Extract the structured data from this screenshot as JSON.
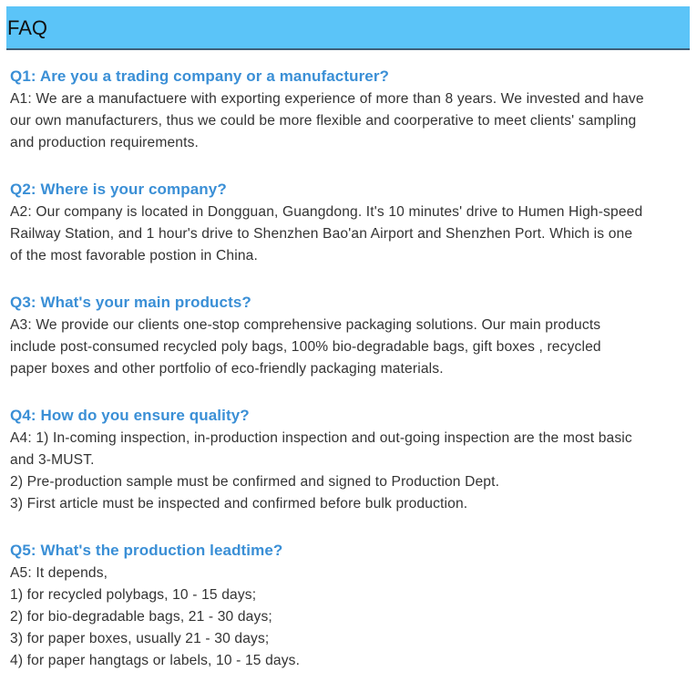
{
  "header": {
    "title": "FAQ",
    "background": "#5bc4f8"
  },
  "faq": [
    {
      "question": "Q1: Are you a trading company or a manufacturer?",
      "answer_lines": [
        "A1: We are a manufactuere with exporting experience of more than 8 years. We invested and have",
        "our own manufacturers, thus we could be more flexible and coorperative to meet clients' sampling",
        "and production requirements."
      ]
    },
    {
      "question": "Q2: Where is your company?",
      "answer_lines": [
        "A2: Our company is located in Dongguan, Guangdong. It's 10 minutes' drive to Humen High-speed",
        "Railway Station, and 1 hour's drive to Shenzhen Bao'an Airport and Shenzhen Port. Which is one",
        "of the most favorable postion in China."
      ]
    },
    {
      "question": "Q3: What's your main products?",
      "answer_lines": [
        "A3: We provide our clients one-stop comprehensive packaging solutions. Our main products",
        "include post-consumed recycled poly bags, 100% bio-degradable bags, gift boxes , recycled",
        "paper boxes and other portfolio of eco-friendly packaging materials."
      ]
    },
    {
      "question": "Q4: How do you ensure quality?",
      "answer_lines": [
        "A4: 1) In-coming inspection, in-production inspection and out-going inspection are the most basic",
        "and 3-MUST.",
        "2) Pre-production sample must be confirmed and signed to Production Dept.",
        "3) First article must be inspected and confirmed before bulk production."
      ]
    },
    {
      "question": "Q5: What's the production leadtime?",
      "answer_lines": [
        "A5: It depends,",
        "1) for recycled polybags, 10 - 15 days;",
        "2) for bio-degradable bags, 21 - 30 days;",
        "3) for paper boxes, usually 21 - 30 days;",
        "4) for paper hangtags or labels, 10 - 15 days."
      ]
    }
  ],
  "colors": {
    "question": "#3a8fd6",
    "answer": "#333333"
  }
}
